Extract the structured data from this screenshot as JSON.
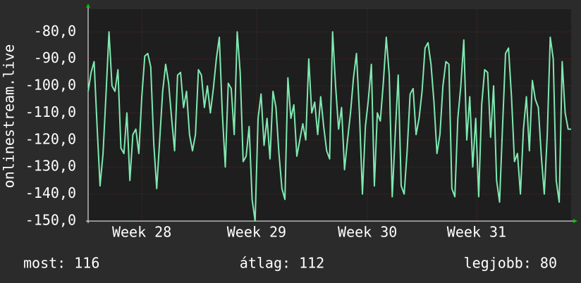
{
  "chart_data": {
    "type": "line",
    "ylabel": "onlinestream.live",
    "ylim": [
      -150,
      -71.6
    ],
    "yticks": [
      {
        "value": -80,
        "label": "-80,0"
      },
      {
        "value": -90,
        "label": "-90,0"
      },
      {
        "value": -100,
        "label": "-100,0"
      },
      {
        "value": -110,
        "label": "-110,0"
      },
      {
        "value": -120,
        "label": "-120,0"
      },
      {
        "value": -130,
        "label": "-130,0"
      },
      {
        "value": -140,
        "label": "-140,0"
      },
      {
        "value": -150,
        "label": "-150,0"
      }
    ],
    "xlim": [
      0,
      162
    ],
    "xticks": [
      {
        "value": 18.0,
        "label": "Week 28"
      },
      {
        "value": 56.5,
        "label": "Week 29"
      },
      {
        "value": 93.7,
        "label": "Week 30"
      },
      {
        "value": 130.3,
        "label": "Week 31"
      }
    ],
    "grid": true,
    "color": "#7fe8b0",
    "values": [
      -102,
      -95,
      -91,
      -115,
      -137,
      -125,
      -103,
      -80,
      -100,
      -102,
      -94,
      -123,
      -125,
      -110,
      -135,
      -118,
      -116,
      -125,
      -104,
      -89,
      -88,
      -93,
      -121,
      -138,
      -120,
      -102,
      -92,
      -99,
      -112,
      -124,
      -96,
      -95,
      -108,
      -102,
      -118,
      -124,
      -118,
      -94,
      -96,
      -108,
      -100,
      -110,
      -101,
      -90,
      -82,
      -110,
      -130,
      -99,
      -101,
      -118,
      -80,
      -95,
      -128,
      -126,
      -115,
      -142,
      -150,
      -112,
      -103,
      -122,
      -112,
      -127,
      -102,
      -108,
      -125,
      -138,
      -142,
      -97,
      -112,
      -107,
      -126,
      -120,
      -114,
      -120,
      -90,
      -110,
      -106,
      -118,
      -104,
      -115,
      -124,
      -127,
      -80,
      -100,
      -116,
      -108,
      -131,
      -120,
      -110,
      -97,
      -88,
      -110,
      -140,
      -115,
      -105,
      -92,
      -137,
      -110,
      -113,
      -99,
      -82,
      -96,
      -141,
      -118,
      -96,
      -137,
      -140,
      -124,
      -103,
      -101,
      -118,
      -112,
      -102,
      -86,
      -84,
      -92,
      -106,
      -125,
      -118,
      -100,
      -91,
      -92,
      -138,
      -141,
      -112,
      -100,
      -83,
      -120,
      -104,
      -130,
      -112,
      -141,
      -107,
      -94,
      -95,
      -119,
      -100,
      -135,
      -143,
      -115,
      -88,
      -86,
      -104,
      -128,
      -125,
      -140,
      -116,
      -104,
      -124,
      -98,
      -105,
      -108,
      -126,
      -140,
      -118,
      -82,
      -90,
      -135,
      -143,
      -91,
      -110,
      -116,
      -116
    ],
    "footer": [
      "most: 116",
      "átlag: 112",
      "legjobb: 80"
    ]
  }
}
